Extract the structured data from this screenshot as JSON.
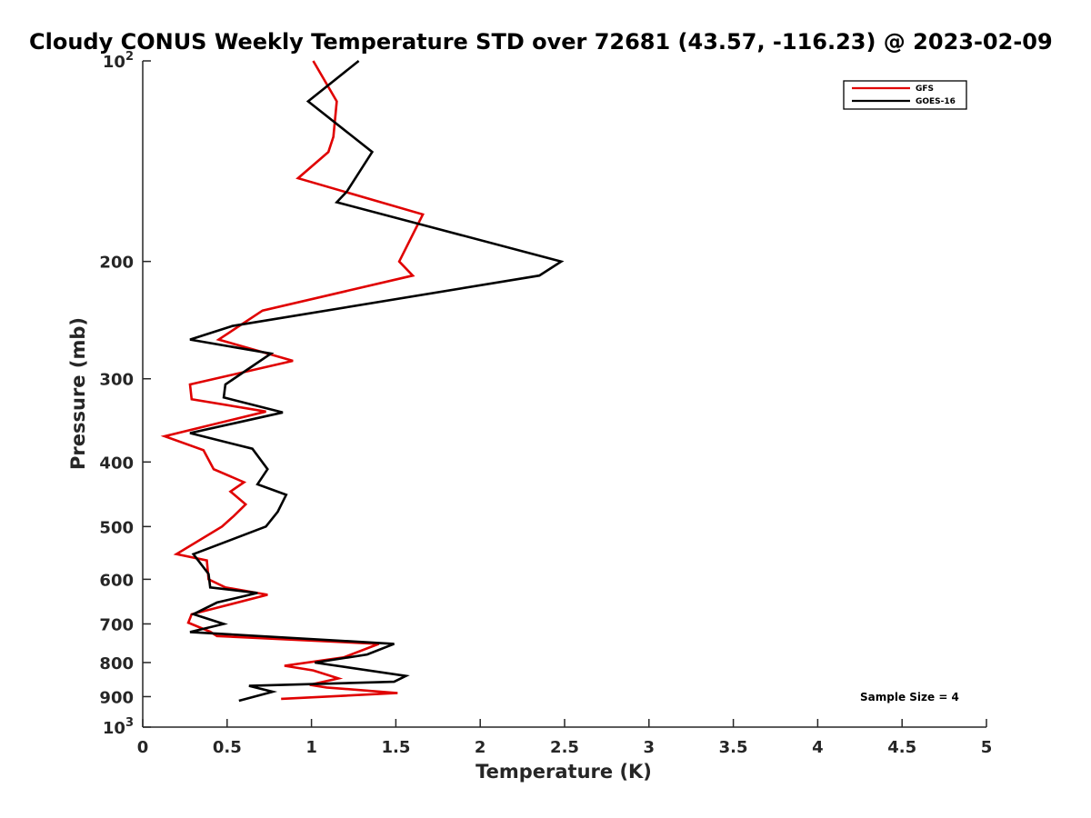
{
  "chart_data": {
    "type": "line",
    "title": "Cloudy CONUS Weekly Temperature STD over 72681 (43.57, -116.23) @ 2023-02-09",
    "xlabel": "Temperature (K)",
    "ylabel": "Pressure (mb)",
    "xlim": [
      0,
      5
    ],
    "ylim": [
      100,
      1000
    ],
    "y_scale": "log",
    "y_reversed": true,
    "grid": false,
    "legend_position": "top-right",
    "x_ticks": [
      "0",
      "0.5",
      "1",
      "1.5",
      "2",
      "2.5",
      "3",
      "3.5",
      "4",
      "4.5",
      "5"
    ],
    "y_ticks": [
      {
        "value": 100,
        "base": "10",
        "exp": "2"
      },
      {
        "value": 200,
        "label": "200"
      },
      {
        "value": 300,
        "label": "300"
      },
      {
        "value": 400,
        "label": "400"
      },
      {
        "value": 500,
        "label": "500"
      },
      {
        "value": 600,
        "label": "600"
      },
      {
        "value": 700,
        "label": "700"
      },
      {
        "value": 800,
        "label": "800"
      },
      {
        "value": 900,
        "label": "900"
      },
      {
        "value": 1000,
        "base": "10",
        "exp": "3"
      }
    ],
    "annotation": "Sample Size = 4",
    "series": [
      {
        "name": "GFS",
        "color": "#e00000",
        "points": [
          [
            1.01,
            100
          ],
          [
            1.15,
            115
          ],
          [
            1.13,
            130
          ],
          [
            1.1,
            137
          ],
          [
            0.92,
            150
          ],
          [
            1.66,
            170
          ],
          [
            1.52,
            200
          ],
          [
            1.6,
            210
          ],
          [
            0.71,
            237
          ],
          [
            0.45,
            262
          ],
          [
            0.89,
            282
          ],
          [
            0.28,
            306
          ],
          [
            0.29,
            322
          ],
          [
            0.73,
            336
          ],
          [
            0.13,
            366
          ],
          [
            0.36,
            384
          ],
          [
            0.42,
            410
          ],
          [
            0.6,
            429
          ],
          [
            0.52,
            443
          ],
          [
            0.61,
            463
          ],
          [
            0.54,
            482
          ],
          [
            0.47,
            500
          ],
          [
            0.2,
            550
          ],
          [
            0.38,
            562
          ],
          [
            0.39,
            600
          ],
          [
            0.49,
            617
          ],
          [
            0.74,
            633
          ],
          [
            0.29,
            677
          ],
          [
            0.27,
            697
          ],
          [
            0.4,
            719
          ],
          [
            0.44,
            730
          ],
          [
            1.4,
            750
          ],
          [
            1.19,
            786
          ],
          [
            0.84,
            809
          ],
          [
            1.01,
            822
          ],
          [
            1.16,
            845
          ],
          [
            0.99,
            864
          ],
          [
            1.09,
            872
          ],
          [
            1.51,
            889
          ],
          [
            0.82,
            907
          ]
        ]
      },
      {
        "name": "GOES-16",
        "color": "#000000",
        "points": [
          [
            1.28,
            100
          ],
          [
            0.98,
            115
          ],
          [
            1.36,
            137
          ],
          [
            1.21,
            157
          ],
          [
            1.15,
            163
          ],
          [
            2.48,
            200
          ],
          [
            2.35,
            210
          ],
          [
            0.53,
            250
          ],
          [
            0.28,
            262
          ],
          [
            0.76,
            275
          ],
          [
            0.49,
            306
          ],
          [
            0.48,
            320
          ],
          [
            0.83,
            337
          ],
          [
            0.28,
            362
          ],
          [
            0.65,
            382
          ],
          [
            0.74,
            410
          ],
          [
            0.68,
            432
          ],
          [
            0.85,
            448
          ],
          [
            0.8,
            475
          ],
          [
            0.73,
            500
          ],
          [
            0.3,
            550
          ],
          [
            0.39,
            589
          ],
          [
            0.4,
            617
          ],
          [
            0.68,
            629
          ],
          [
            0.44,
            650
          ],
          [
            0.3,
            677
          ],
          [
            0.48,
            700
          ],
          [
            0.28,
            720
          ],
          [
            1.49,
            750
          ],
          [
            1.33,
            778
          ],
          [
            1.02,
            800
          ],
          [
            1.56,
            838
          ],
          [
            1.49,
            855
          ],
          [
            0.63,
            867
          ],
          [
            0.77,
            885
          ],
          [
            0.57,
            913
          ]
        ]
      }
    ]
  }
}
